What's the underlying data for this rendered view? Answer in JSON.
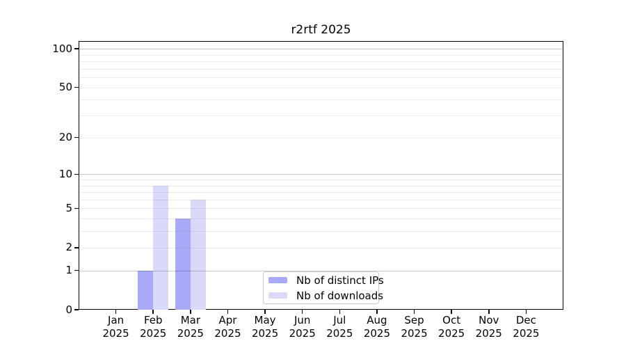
{
  "chart_data": {
    "type": "bar",
    "title": "r2rtf 2025",
    "x": {
      "months": [
        "Jan",
        "Feb",
        "Mar",
        "Apr",
        "May",
        "Jun",
        "Jul",
        "Aug",
        "Sep",
        "Oct",
        "Nov",
        "Dec"
      ],
      "year": "2025"
    },
    "y": {
      "scale": "log10(value+1)",
      "ylim": [
        0,
        115
      ],
      "ticks": [
        0,
        1,
        2,
        5,
        10,
        20,
        50,
        100
      ],
      "major_gridlines": [
        1,
        10,
        100
      ],
      "minor_gridlines": [
        2,
        3,
        4,
        5,
        6,
        7,
        8,
        9,
        20,
        30,
        40,
        50,
        60,
        70,
        80,
        90
      ]
    },
    "series": [
      {
        "name": "Nb of distinct IPs",
        "color": "#a9a9fa",
        "values": [
          0,
          1,
          4,
          0,
          0,
          0,
          0,
          0,
          0,
          0,
          0,
          0
        ]
      },
      {
        "name": "Nb of downloads",
        "color": "#d9d9fa",
        "values": [
          0,
          8,
          6,
          0,
          0,
          0,
          0,
          0,
          0,
          0,
          0,
          0
        ]
      }
    ],
    "legend": {
      "position": "lower center",
      "labels": [
        "Nb of distinct IPs",
        "Nb of downloads"
      ]
    },
    "colors": {
      "background": "#ffffff",
      "axis": "#000000",
      "text": "#000000",
      "legend_border": "#c9c9c9",
      "major_grid": "#cbcbcb",
      "minor_grid": "#ededed"
    }
  }
}
